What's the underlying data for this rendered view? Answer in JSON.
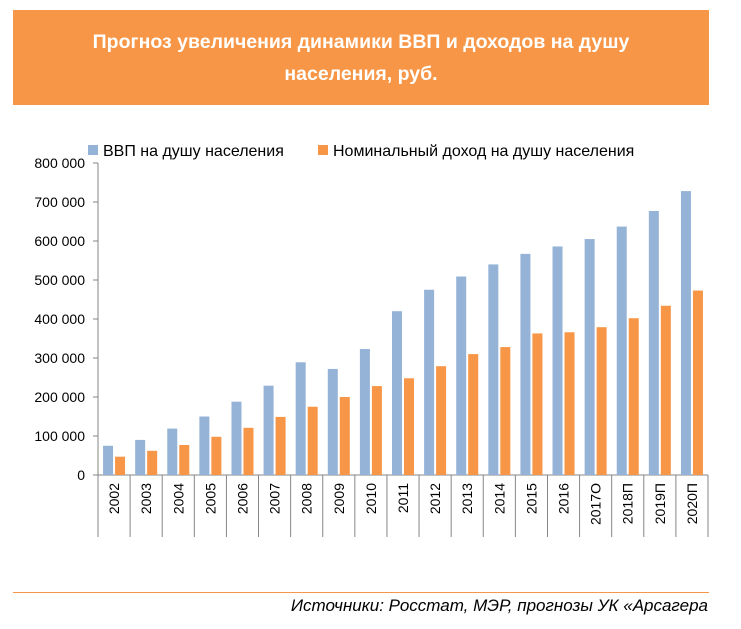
{
  "title": "Прогноз увеличения динамики ВВП и доходов на душу населения, руб.",
  "source": "Источники: Росстат, МЭР, прогнозы УК «Арсагера",
  "colors": {
    "header_bg": "#f79646",
    "series_gdp": "#95b3d7",
    "series_income": "#f79646"
  },
  "chart_data": {
    "type": "bar",
    "title": "Прогноз увеличения динамики ВВП и доходов на душу населения, руб.",
    "xlabel": "",
    "ylabel": "",
    "ylim": [
      0,
      800000
    ],
    "yticks": [
      0,
      100000,
      200000,
      300000,
      400000,
      500000,
      600000,
      700000,
      800000
    ],
    "ytick_labels": [
      "0",
      "100 000",
      "200 000",
      "300 000",
      "400 000",
      "500 000",
      "600 000",
      "700 000",
      "800 000"
    ],
    "grid": false,
    "legend": "top",
    "categories": [
      "2002",
      "2003",
      "2004",
      "2005",
      "2006",
      "2007",
      "2008",
      "2009",
      "2010",
      "2011",
      "2012",
      "2013",
      "2014",
      "2015",
      "2016",
      "2017О",
      "2018П",
      "2019П",
      "2020П"
    ],
    "series": [
      {
        "name": "ВВП на душу населения",
        "color": "#95b3d7",
        "values": [
          75000,
          90000,
          119000,
          150000,
          188000,
          229000,
          289000,
          272000,
          323000,
          420000,
          475000,
          509000,
          540000,
          567000,
          586000,
          605000,
          637000,
          677000,
          728000
        ]
      },
      {
        "name": "Номинальный доход на душу населения",
        "color": "#f79646",
        "values": [
          47000,
          62000,
          77000,
          98000,
          121000,
          149000,
          175000,
          200000,
          228000,
          248000,
          279000,
          310000,
          328000,
          363000,
          366000,
          379000,
          402000,
          434000,
          473000
        ]
      }
    ]
  }
}
